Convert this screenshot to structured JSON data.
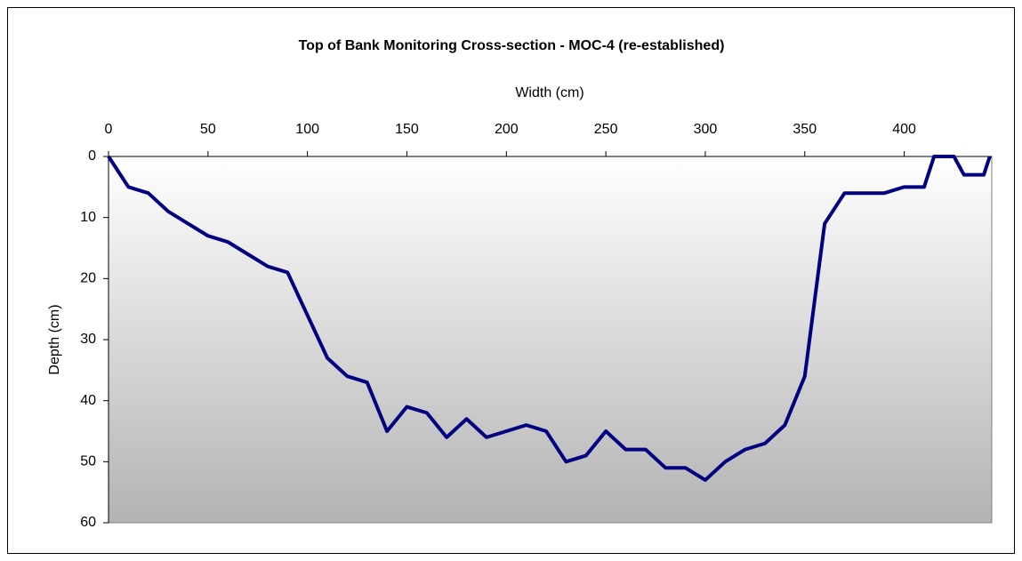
{
  "chart_data": {
    "type": "line",
    "title": "Top of Bank Monitoring Cross-section - MOC-4 (re-established)",
    "x_label": "Width (cm)",
    "y_label": "Depth (cm)",
    "x": [
      0,
      10,
      20,
      30,
      40,
      50,
      60,
      70,
      80,
      90,
      100,
      110,
      120,
      130,
      140,
      150,
      160,
      170,
      180,
      190,
      200,
      210,
      220,
      230,
      240,
      250,
      260,
      270,
      280,
      290,
      300,
      310,
      320,
      330,
      340,
      350,
      360,
      370,
      380,
      390,
      400,
      410,
      415,
      425,
      430,
      440,
      443
    ],
    "series": [
      {
        "name": "Depth",
        "color": "#000080",
        "values": [
          0,
          5,
          6,
          9,
          11,
          13,
          14,
          16,
          18,
          19,
          26,
          33,
          36,
          37,
          45,
          41,
          42,
          46,
          43,
          46,
          45,
          44,
          45,
          50,
          49,
          45,
          48,
          48,
          51,
          51,
          53,
          50,
          48,
          47,
          44,
          36,
          11,
          6,
          6,
          6,
          5,
          5,
          0,
          0,
          3,
          3,
          0
        ]
      }
    ],
    "xlim": [
      0,
      444
    ],
    "xticks": [
      0,
      50,
      100,
      150,
      200,
      250,
      300,
      350,
      400
    ],
    "ylim": [
      0,
      60
    ],
    "yticks": [
      0,
      10,
      20,
      30,
      40,
      50,
      60
    ],
    "y_inverted": true,
    "x_axis_position": "top"
  }
}
